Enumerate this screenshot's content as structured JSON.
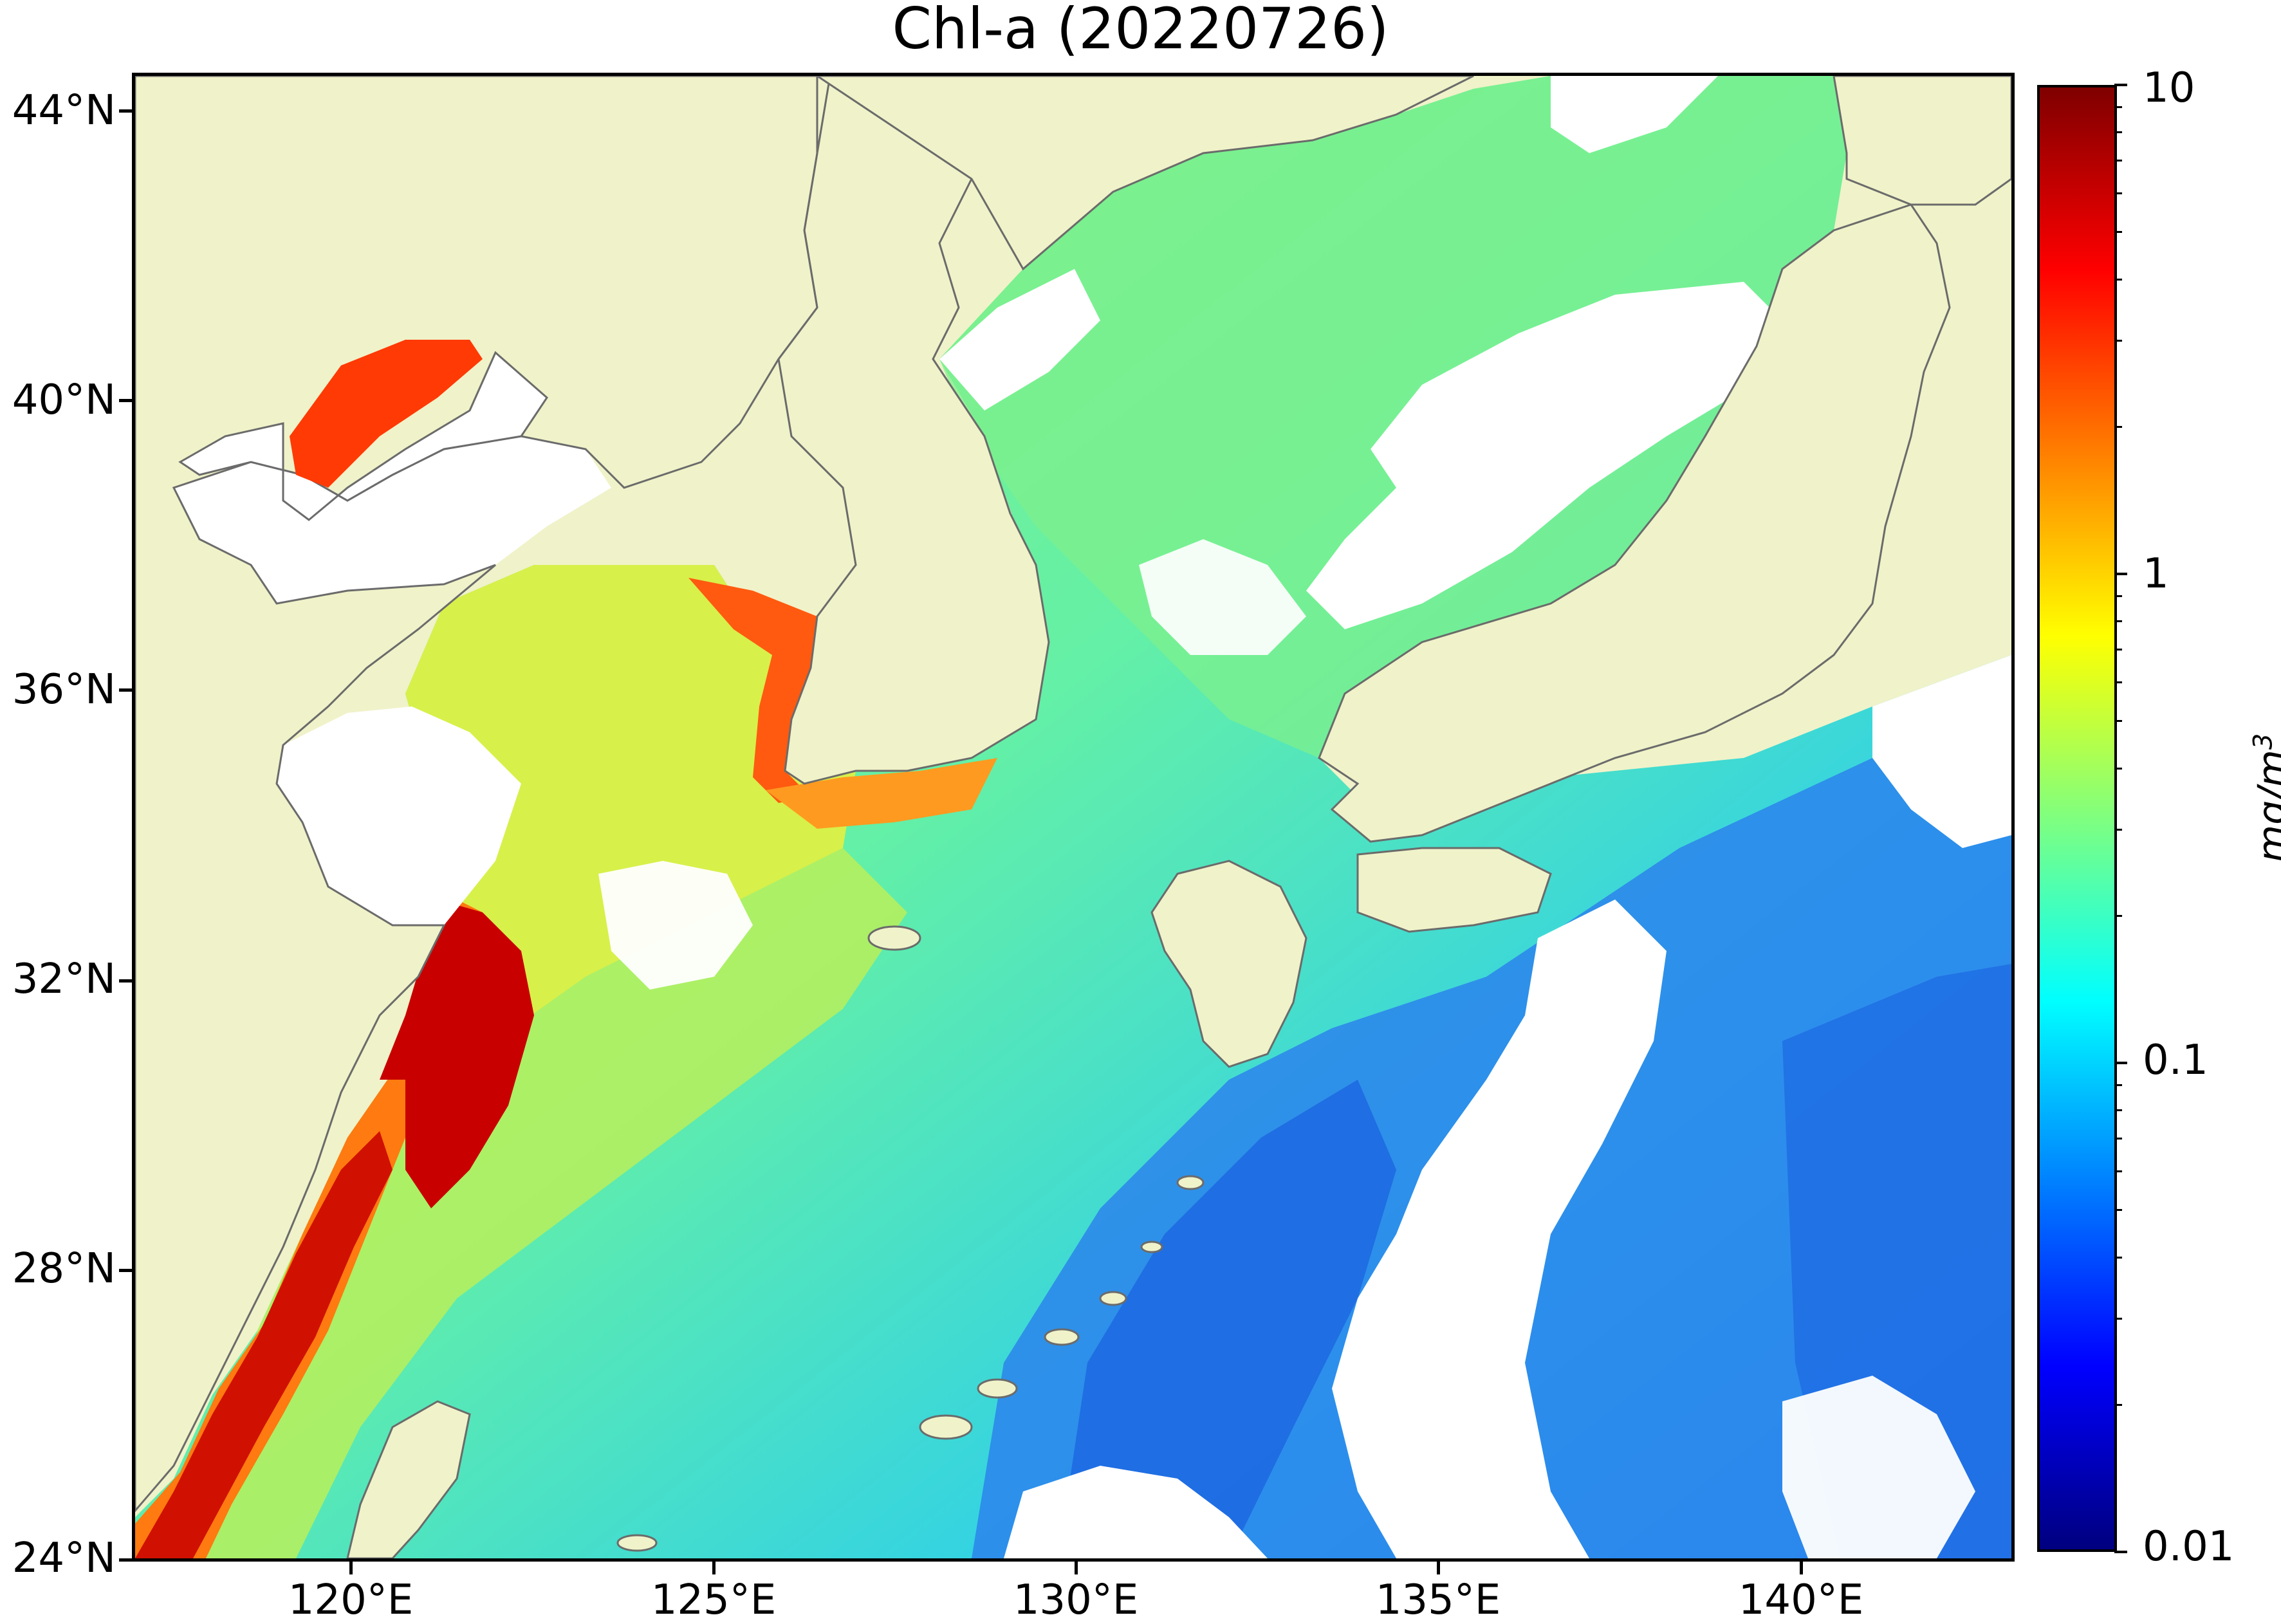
{
  "title": "Chl-a (20220726)",
  "latitude_labels": [
    "44°N",
    "40°N",
    "36°N",
    "32°N",
    "28°N",
    "24°N"
  ],
  "longitude_labels": [
    "120°E",
    "125°E",
    "130°E",
    "135°E",
    "140°E"
  ],
  "colorbar": {
    "scale": "log",
    "range": [
      0.01,
      10
    ],
    "tick_labels": [
      "10",
      "1",
      "0.1",
      "0.01"
    ],
    "unit": "mg/m",
    "unit_exponent": "3",
    "colormap": [
      "#00007f",
      "#0000ff",
      "#007fff",
      "#00ffff",
      "#7fff7f",
      "#ffff00",
      "#ff7f00",
      "#ff0000",
      "#7f0000"
    ]
  },
  "colors": {
    "land": "#f0f2c9",
    "no_data": "#ffffff",
    "coastline": "#6b6b6b"
  }
}
